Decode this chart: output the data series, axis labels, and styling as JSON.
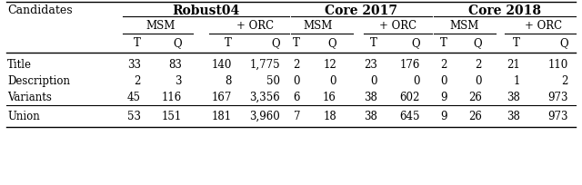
{
  "rows": [
    [
      "Title",
      "33",
      "83",
      "140",
      "1,775",
      "2",
      "12",
      "23",
      "176",
      "2",
      "2",
      "21",
      "110"
    ],
    [
      "Description",
      "2",
      "3",
      "8",
      "50",
      "0",
      "0",
      "0",
      "0",
      "0",
      "0",
      "1",
      "2"
    ],
    [
      "Variants",
      "45",
      "116",
      "167",
      "3,356",
      "6",
      "16",
      "38",
      "602",
      "9",
      "26",
      "38",
      "973"
    ]
  ],
  "union_row": [
    "Union",
    "53",
    "151",
    "181",
    "3,960",
    "7",
    "18",
    "38",
    "645",
    "9",
    "26",
    "38",
    "973"
  ],
  "bg_color": "#ffffff",
  "text_color": "#000000",
  "font_size": 8.5
}
